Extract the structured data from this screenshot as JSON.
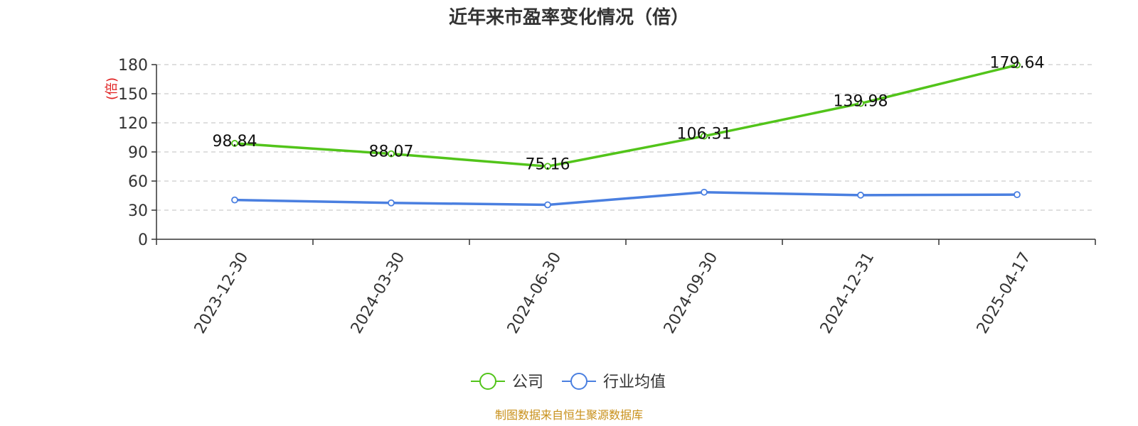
{
  "chart_data": {
    "type": "line",
    "title": "近年来市盈率变化情况（倍）",
    "ylabel": "(倍)",
    "ylim": [
      0,
      180
    ],
    "yticks": [
      "0",
      "30",
      "60",
      "90",
      "120",
      "150",
      "180"
    ],
    "grid": true,
    "categories": [
      "2023-12-30",
      "2024-03-30",
      "2024-06-30",
      "2024-09-30",
      "2024-12-31",
      "2025-04-17"
    ],
    "series": [
      {
        "name": "公司",
        "color": "#52c41a",
        "values": [
          98.84,
          88.07,
          75.16,
          106.31,
          139.98,
          179.64
        ],
        "labels": [
          "98.84",
          "88.07",
          "75.16",
          "106.31",
          "139.98",
          "179.64"
        ],
        "show_labels": true
      },
      {
        "name": "行业均值",
        "color": "#4a7fe0",
        "values": [
          40.5,
          37.5,
          35.5,
          48.5,
          45.5,
          46.0
        ],
        "show_labels": false
      }
    ],
    "legend_position": "bottom-center",
    "source": "制图数据来自恒生聚源数据库"
  }
}
